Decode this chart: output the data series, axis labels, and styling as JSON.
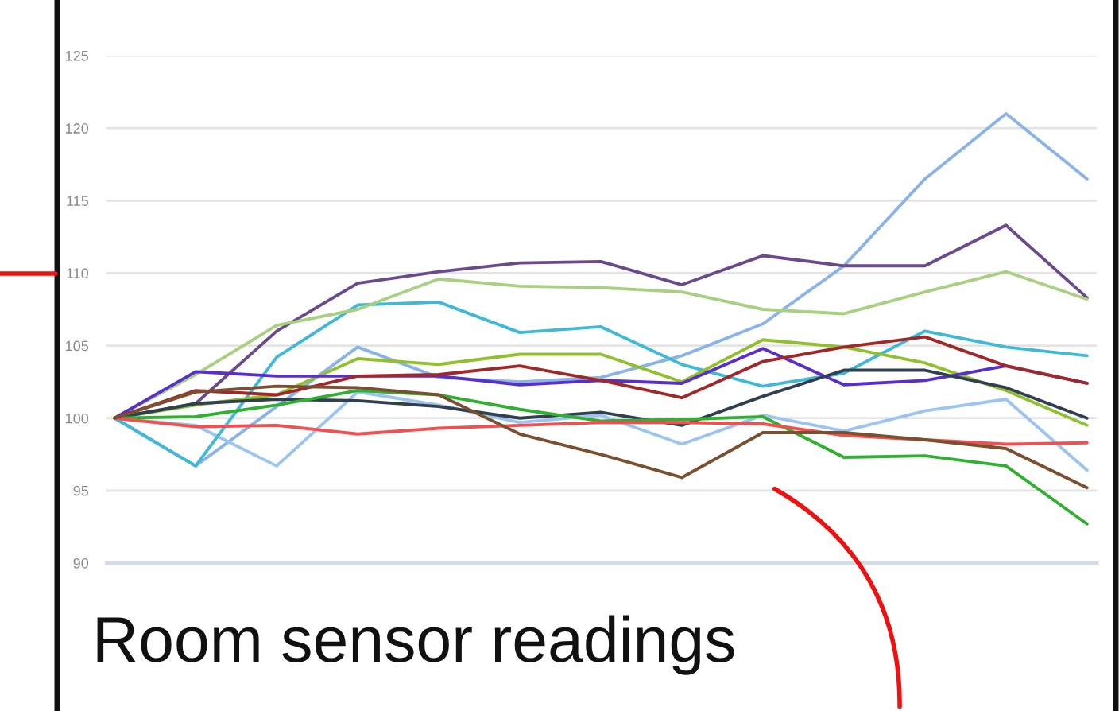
{
  "chart_data": {
    "type": "line",
    "title": "Room sensor readings",
    "categories": [
      null,
      null,
      null,
      null,
      null,
      null,
      null,
      null,
      null,
      null,
      null,
      null,
      null
    ],
    "ylim": [
      90,
      125
    ],
    "yticks": [
      90,
      95,
      100,
      105,
      110,
      115,
      120,
      125
    ],
    "grid": "y",
    "legend": false,
    "marker": "none",
    "line_style": "solid",
    "series": [
      {
        "color": "#8ab4e8",
        "values": [
          100,
          96.7,
          100.8,
          104.9,
          102.8,
          102.5,
          102.8,
          104.3,
          106.5,
          110.5,
          116.5,
          121.0,
          116.5
        ]
      },
      {
        "color": "#9cc4f0",
        "values": [
          100,
          99.5,
          96.7,
          101.8,
          100.9,
          99.7,
          100.2,
          98.2,
          100.2,
          99.1,
          100.5,
          101.3,
          96.4
        ]
      },
      {
        "color": "#40b8d8",
        "values": [
          100,
          96.7,
          104.2,
          107.8,
          108.0,
          105.9,
          106.3,
          103.7,
          102.2,
          103.1,
          106.0,
          104.9,
          104.3
        ]
      },
      {
        "color": "#6a4a8a",
        "values": [
          100,
          101.0,
          106.0,
          109.3,
          110.1,
          110.7,
          110.8,
          109.2,
          111.2,
          110.5,
          110.5,
          113.3,
          108.3
        ]
      },
      {
        "color": "#a8d080",
        "values": [
          100,
          103.0,
          106.4,
          107.5,
          109.6,
          109.1,
          109.0,
          108.7,
          107.5,
          107.2,
          108.7,
          110.1,
          108.2
        ]
      },
      {
        "color": "#90c030",
        "values": [
          100,
          100.9,
          101.6,
          104.1,
          103.7,
          104.4,
          104.4,
          102.5,
          105.4,
          104.9,
          103.8,
          101.9,
          99.5
        ]
      },
      {
        "color": "#5a2ec8",
        "values": [
          100,
          103.2,
          102.9,
          102.9,
          102.9,
          102.3,
          102.6,
          102.4,
          104.8,
          102.3,
          102.6,
          103.6,
          102.4
        ]
      },
      {
        "color": "#a02828",
        "values": [
          100,
          101.9,
          101.6,
          102.9,
          103.0,
          103.6,
          102.6,
          101.4,
          103.9,
          104.9,
          105.6,
          103.6,
          102.4
        ]
      },
      {
        "color": "#304050",
        "values": [
          100,
          101.0,
          101.3,
          101.2,
          100.8,
          100.0,
          100.4,
          99.5,
          101.5,
          103.3,
          103.3,
          102.1,
          100.0
        ]
      },
      {
        "color": "#30b030",
        "values": [
          100,
          100.1,
          100.9,
          101.9,
          101.6,
          100.6,
          99.8,
          99.9,
          100.1,
          97.3,
          97.4,
          96.7,
          92.7
        ]
      },
      {
        "color": "#f05050",
        "values": [
          100,
          99.4,
          99.5,
          98.9,
          99.3,
          99.5,
          99.7,
          99.7,
          99.6,
          98.8,
          98.5,
          98.2,
          98.3
        ]
      },
      {
        "color": "#7a5030",
        "values": [
          100,
          101.8,
          102.2,
          102.1,
          101.6,
          98.9,
          97.5,
          95.9,
          99.0,
          99.0,
          98.5,
          97.9,
          95.2
        ]
      }
    ]
  }
}
